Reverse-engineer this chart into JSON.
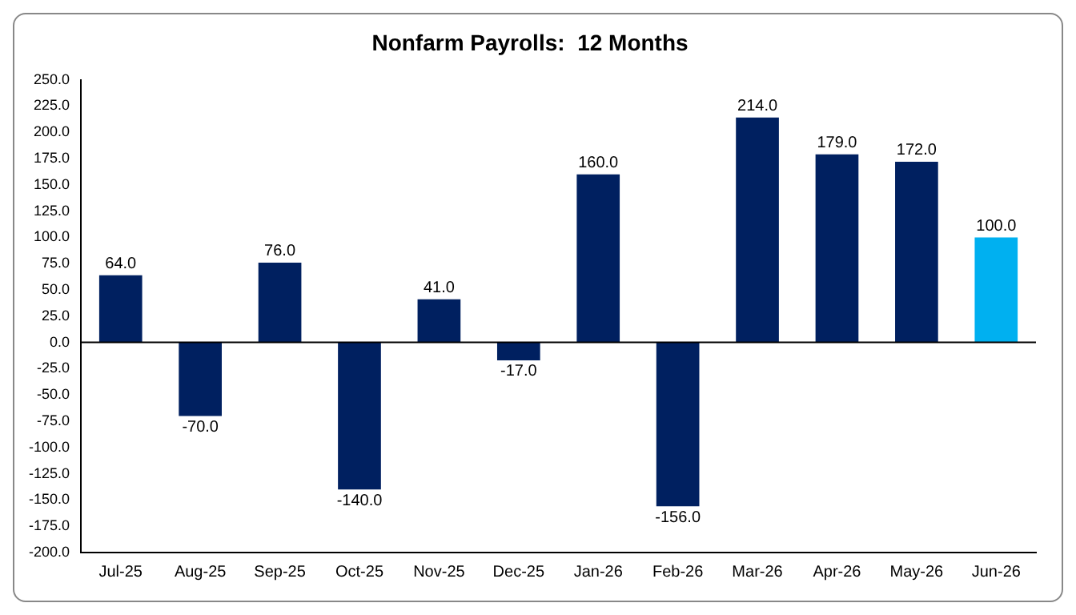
{
  "chart_data": {
    "type": "bar",
    "title": "Nonfarm Payrolls:  12 Months",
    "categories": [
      "Jul-25",
      "Aug-25",
      "Sep-25",
      "Oct-25",
      "Nov-25",
      "Dec-25",
      "Jan-26",
      "Feb-26",
      "Mar-26",
      "Apr-26",
      "May-26",
      "Jun-26"
    ],
    "values": [
      64,
      -70,
      76,
      -140,
      41,
      -17,
      160,
      -156,
      214,
      179,
      172,
      100
    ],
    "colors": [
      "#002060",
      "#002060",
      "#002060",
      "#002060",
      "#002060",
      "#002060",
      "#002060",
      "#002060",
      "#002060",
      "#002060",
      "#002060",
      "#00b0f0"
    ],
    "value_labels": [
      "64.0",
      "-70.0",
      "76.0",
      "-140.0",
      "41.0",
      "-17.0",
      "160.0",
      "-156.0",
      "214.0",
      "179.0",
      "172.0",
      "100.0"
    ],
    "ylim": [
      -200,
      250
    ],
    "yticks": [
      {
        "value": -200,
        "label": "-200.0"
      },
      {
        "value": -175,
        "label": "-175.0"
      },
      {
        "value": -150,
        "label": "-150.0"
      },
      {
        "value": -125,
        "label": "-125.0"
      },
      {
        "value": -100,
        "label": "-100.0"
      },
      {
        "value": -75,
        "label": "-75.0"
      },
      {
        "value": -50,
        "label": "-50.0"
      },
      {
        "value": -25,
        "label": "-25.0"
      },
      {
        "value": 0,
        "label": "0.0"
      },
      {
        "value": 25,
        "label": "25.0"
      },
      {
        "value": 50,
        "label": "50.0"
      },
      {
        "value": 75,
        "label": "75.0"
      },
      {
        "value": 100,
        "label": "100.0"
      },
      {
        "value": 125,
        "label": "125.0"
      },
      {
        "value": 150,
        "label": "150.0"
      },
      {
        "value": 175,
        "label": "175.0"
      },
      {
        "value": 200,
        "label": "200.0"
      },
      {
        "value": 225,
        "label": "225.0"
      },
      {
        "value": 250,
        "label": "250.0"
      }
    ],
    "ref_lines": [
      {
        "axis": "y",
        "value": 0,
        "color": "#000000"
      }
    ],
    "grid": false,
    "legend": false
  }
}
